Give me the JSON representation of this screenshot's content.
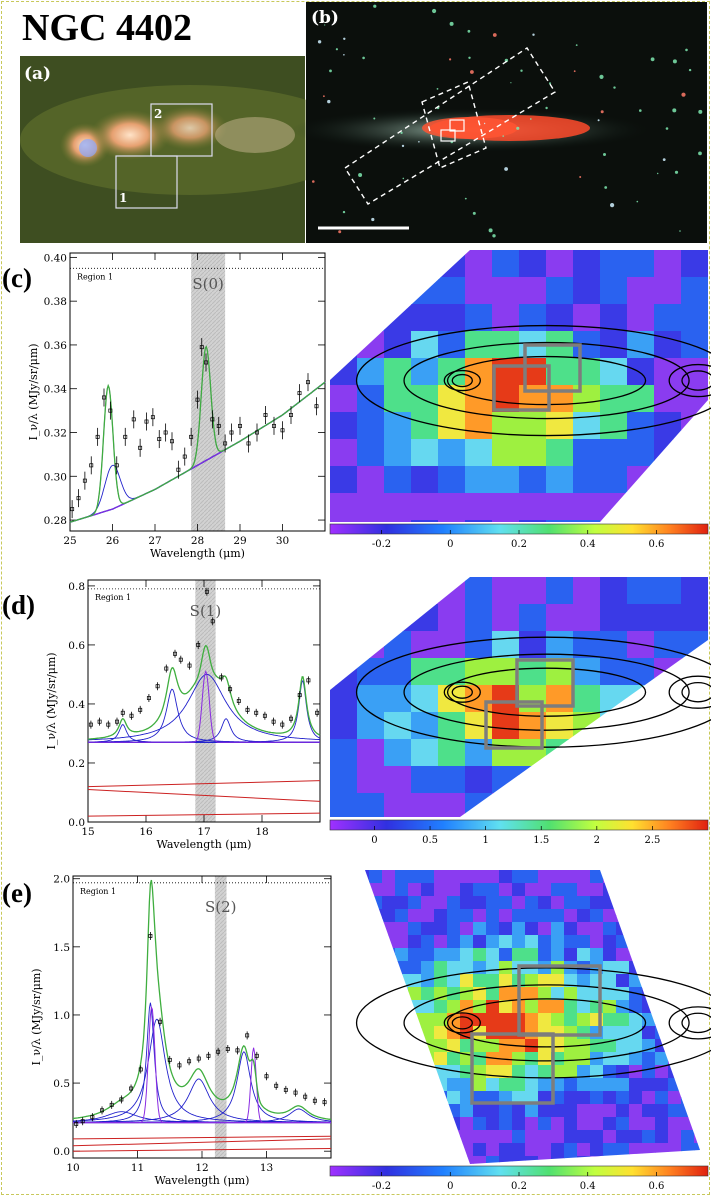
{
  "figure": {
    "title": "NGC 4402",
    "panel_labels": [
      "(a)",
      "(b)",
      "(c)",
      "(d)",
      "(e)"
    ],
    "box_labels": [
      "1",
      "2"
    ],
    "colors": {
      "fit": "#3fae3f",
      "component": "#2222cc",
      "line_component": "#8a2be2",
      "continuum": "#cc2222",
      "data": "#000000",
      "shade": "#c8c8c8"
    }
  },
  "chart_data": [
    {
      "type": "line",
      "panel": "(c)",
      "region_label": "Region 1",
      "line_label": "S(0)",
      "xlabel": "Wavelength (μm)",
      "ylabel": "I_ν/λ (MJy/sr/μm)",
      "xlim": [
        25,
        31
      ],
      "ylim": [
        0.275,
        0.402
      ],
      "xticks": [
        25,
        26,
        27,
        28,
        29,
        30
      ],
      "yticks": [
        0.28,
        0.3,
        0.32,
        0.34,
        0.36,
        0.38,
        0.4
      ],
      "xtick_labels": [
        "25",
        "26",
        "27",
        "28",
        "29",
        "30"
      ],
      "ytick_labels": [
        "0.28",
        "0.30",
        "0.32",
        "0.34",
        "0.36",
        "0.38",
        "0.40"
      ],
      "dotted_line_y": 0.395,
      "shade_range": [
        27.85,
        28.65
      ],
      "data_points": {
        "x": [
          25.05,
          25.2,
          25.35,
          25.5,
          25.65,
          25.8,
          25.95,
          26.1,
          26.3,
          26.5,
          26.65,
          26.8,
          26.95,
          27.1,
          27.25,
          27.4,
          27.55,
          27.7,
          27.85,
          28.0,
          28.1,
          28.2,
          28.35,
          28.5,
          28.65,
          28.8,
          29.0,
          29.2,
          29.4,
          29.6,
          29.8,
          30.0,
          30.2,
          30.4,
          30.6,
          30.8
        ],
        "y": [
          0.285,
          0.29,
          0.298,
          0.305,
          0.318,
          0.336,
          0.33,
          0.305,
          0.318,
          0.326,
          0.313,
          0.325,
          0.327,
          0.317,
          0.32,
          0.316,
          0.303,
          0.309,
          0.318,
          0.335,
          0.359,
          0.352,
          0.326,
          0.323,
          0.315,
          0.32,
          0.323,
          0.315,
          0.32,
          0.328,
          0.323,
          0.321,
          0.328,
          0.338,
          0.343,
          0.332
        ]
      },
      "continuum": {
        "x": [
          25,
          26,
          27,
          28,
          29,
          30,
          31
        ],
        "y": [
          0.279,
          0.285,
          0.294,
          0.305,
          0.316,
          0.328,
          0.343
        ]
      },
      "lines": [
        {
          "center": 25.9,
          "amplitude": 0.057,
          "sigma": 0.11
        },
        {
          "center": 28.2,
          "amplitude": 0.052,
          "sigma": 0.11
        }
      ],
      "colorbar": {
        "ticks": [
          -0.2,
          0,
          0.2,
          0.4,
          0.6
        ],
        "tick_labels": [
          "-0.2",
          "0",
          "0.2",
          "0.4",
          "0.6"
        ],
        "range": [
          -0.35,
          0.75
        ]
      }
    },
    {
      "type": "line",
      "panel": "(d)",
      "region_label": "Region 1",
      "line_label": "S(1)",
      "xlabel": "Wavelength (μm)",
      "ylabel": "I_ν/λ (MJy/sr/μm)",
      "xlim": [
        15,
        19
      ],
      "ylim": [
        0,
        0.82
      ],
      "xticks": [
        15,
        16,
        17,
        18
      ],
      "yticks": [
        0.0,
        0.2,
        0.4,
        0.6,
        0.8
      ],
      "xtick_labels": [
        "15",
        "16",
        "17",
        "18"
      ],
      "ytick_labels": [
        "0.0",
        "0.2",
        "0.4",
        "0.6",
        "0.8"
      ],
      "dotted_line_y": 0.79,
      "shade_range": [
        16.85,
        17.2
      ],
      "data_points": {
        "x": [
          15.05,
          15.2,
          15.35,
          15.5,
          15.6,
          15.75,
          15.9,
          16.05,
          16.2,
          16.35,
          16.5,
          16.6,
          16.75,
          16.9,
          17.05,
          17.15,
          17.3,
          17.45,
          17.6,
          17.75,
          17.9,
          18.05,
          18.2,
          18.35,
          18.5,
          18.65,
          18.8,
          18.95
        ],
        "y": [
          0.33,
          0.34,
          0.33,
          0.34,
          0.37,
          0.36,
          0.38,
          0.42,
          0.46,
          0.52,
          0.57,
          0.55,
          0.53,
          0.6,
          0.78,
          0.68,
          0.49,
          0.45,
          0.41,
          0.38,
          0.37,
          0.36,
          0.34,
          0.33,
          0.35,
          0.43,
          0.48,
          0.37
        ]
      },
      "baseline": 0.27,
      "lines": [
        {
          "center": 17.03,
          "amplitude": 0.24,
          "sigma": 0.06
        }
      ],
      "features": [
        {
          "center": 15.6,
          "amplitude": 0.06,
          "width": 0.08
        },
        {
          "center": 16.45,
          "amplitude": 0.18,
          "width": 0.12
        },
        {
          "center": 17.05,
          "amplitude": 0.23,
          "width": 0.4
        },
        {
          "center": 17.38,
          "amplitude": 0.08,
          "width": 0.1
        },
        {
          "center": 18.7,
          "amplitude": 0.21,
          "width": 0.08
        }
      ],
      "continuum_lines": [
        {
          "y0": 0.12,
          "y1": 0.14
        },
        {
          "y0": 0.11,
          "y1": 0.07
        },
        {
          "y0": 0.02,
          "y1": 0.03
        }
      ],
      "colorbar": {
        "ticks": [
          0,
          0.5,
          1,
          1.5,
          2,
          2.5
        ],
        "tick_labels": [
          "0",
          "0.5",
          "1",
          "1.5",
          "2",
          "2.5"
        ],
        "range": [
          -0.4,
          3.0
        ]
      }
    },
    {
      "type": "line",
      "panel": "(e)",
      "region_label": "Region 1",
      "line_label": "S(2)",
      "xlabel": "Wavelength (μm)",
      "ylabel": "I_ν/λ (MJy/sr/μm)",
      "xlim": [
        10,
        14
      ],
      "ylim": [
        -0.05,
        2.02
      ],
      "xticks": [
        10,
        11,
        12,
        13
      ],
      "yticks": [
        0.0,
        0.5,
        1.0,
        1.5,
        2.0
      ],
      "xtick_labels": [
        "10",
        "11",
        "12",
        "13"
      ],
      "ytick_labels": [
        "0.0",
        "0.5",
        "1.0",
        "1.5",
        "2.0"
      ],
      "dotted_line_y": 1.97,
      "shade_range": [
        12.2,
        12.38
      ],
      "data_points": {
        "x": [
          10.05,
          10.15,
          10.3,
          10.45,
          10.6,
          10.75,
          10.9,
          11.05,
          11.2,
          11.35,
          11.5,
          11.65,
          11.8,
          11.95,
          12.1,
          12.25,
          12.4,
          12.55,
          12.7,
          12.85,
          13.0,
          13.15,
          13.3,
          13.45,
          13.6,
          13.75,
          13.9
        ],
        "y": [
          0.2,
          0.22,
          0.25,
          0.3,
          0.34,
          0.38,
          0.46,
          0.6,
          1.58,
          0.95,
          0.67,
          0.63,
          0.66,
          0.68,
          0.7,
          0.73,
          0.75,
          0.74,
          0.85,
          0.7,
          0.55,
          0.48,
          0.45,
          0.43,
          0.4,
          0.37,
          0.36
        ]
      },
      "baseline": 0.21,
      "lines": [
        {
          "center": 11.22,
          "amplitude": 0.85,
          "sigma": 0.05
        },
        {
          "center": 12.8,
          "amplitude": 0.55,
          "sigma": 0.04
        }
      ],
      "features": [
        {
          "center": 11.2,
          "amplitude": 0.88,
          "width": 0.07
        },
        {
          "center": 11.3,
          "amplitude": 0.76,
          "width": 0.16
        },
        {
          "center": 11.95,
          "amplitude": 0.32,
          "width": 0.2
        },
        {
          "center": 12.65,
          "amplitude": 0.52,
          "width": 0.13
        },
        {
          "center": 13.5,
          "amplitude": 0.1,
          "width": 0.18
        },
        {
          "center": 10.75,
          "amplitude": 0.08,
          "width": 0.3
        }
      ],
      "continuum_lines": [
        {
          "y0": 0.09,
          "y1": 0.11
        },
        {
          "y0": 0.04,
          "y1": 0.09
        },
        {
          "y0": 0.0,
          "y1": 0.02
        }
      ],
      "colorbar": {
        "ticks": [
          -0.2,
          0,
          0.2,
          0.4,
          0.6
        ],
        "tick_labels": [
          "-0.2",
          "0",
          "0.2",
          "0.4",
          "0.6"
        ],
        "range": [
          -0.35,
          0.75
        ]
      }
    }
  ]
}
